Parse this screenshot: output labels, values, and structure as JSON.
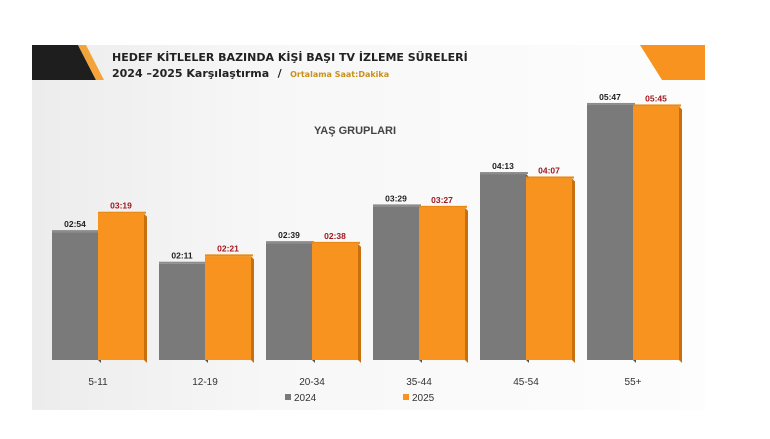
{
  "title": "HEDEF KİTLELER BAZINDA KİŞİ BAŞI TV İZLEME SÜRELERİ",
  "subtitle": "2024 –2025 Karşılaştırma",
  "subtitle_sep": "/",
  "subtitle_note": "Ortalama Saat:Dakika",
  "colors": {
    "s2024": "#7a7a7a",
    "s2025": "#f7931e",
    "label2024": "#222222",
    "label2025": "#a0191e"
  },
  "chart_data": {
    "type": "bar",
    "title": "YAŞ GRUPLARI",
    "categories": [
      "5-11",
      "12-19",
      "20-34",
      "35-44",
      "45-54",
      "55+"
    ],
    "series": [
      {
        "name": "2024",
        "values": [
          "02:54",
          "02:11",
          "02:39",
          "03:29",
          "04:13",
          "05:47"
        ]
      },
      {
        "name": "2025",
        "values": [
          "03:19",
          "02:21",
          "02:38",
          "03:27",
          "04:07",
          "05:45"
        ]
      }
    ],
    "legend": "bottom",
    "grid": false
  }
}
